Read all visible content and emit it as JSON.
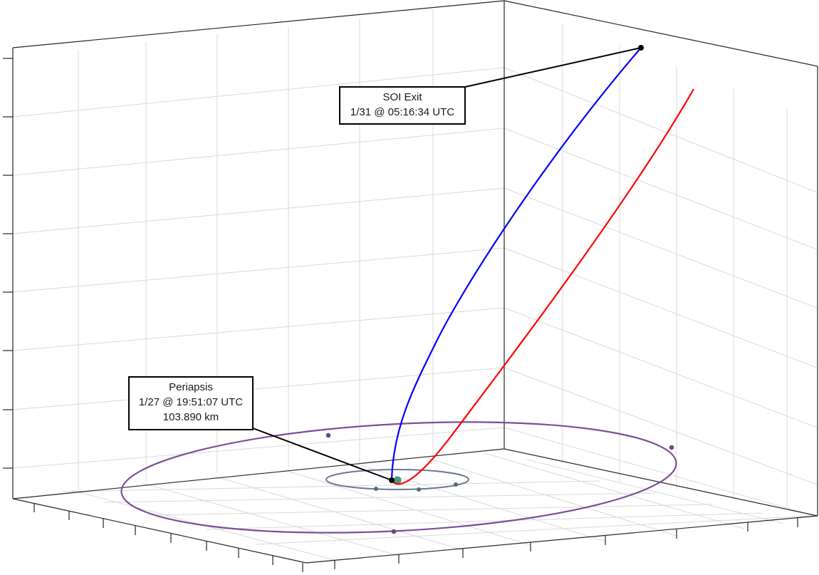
{
  "annotations": {
    "soi_exit": {
      "title": "SOI Exit",
      "time": "1/31 @ 05:16:34 UTC"
    },
    "periapsis": {
      "title": "Periapsis",
      "time": "1/27 @ 19:51:07 UTC",
      "altitude": "103.890 km"
    }
  },
  "colors": {
    "grid": "#d9d9d9",
    "axis": "#262626",
    "trajectory_actual": "#0000ff",
    "trajectory_alternate": "#ff0000",
    "outer_orbit": "#7b4f96",
    "inner_orbit": "#6a7891",
    "central_body": "#3f9e8a",
    "event_marker": "#000000",
    "leader_line": "#000000"
  },
  "icons": {
    "central_body": "planet-dot-icon"
  }
}
